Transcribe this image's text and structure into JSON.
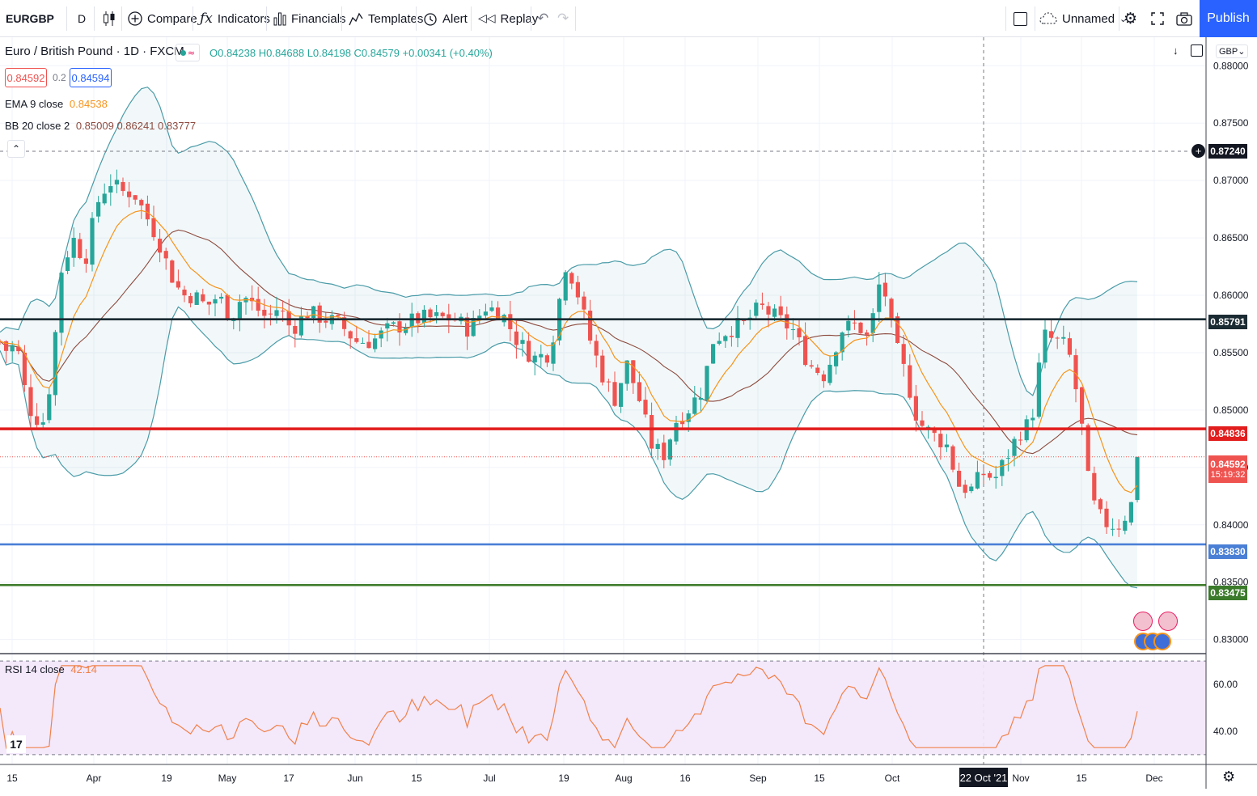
{
  "toolbar": {
    "symbol": "EURGBP",
    "interval": "D",
    "compare": "Compare",
    "indicators": "Indicators",
    "financials": "Financials",
    "templates": "Templates",
    "alert": "Alert",
    "replay": "Replay",
    "layout_name": "Unnamed",
    "publish": "Publish"
  },
  "legend": {
    "title": "Euro / British Pound · 1D · FXCM",
    "ohlc": "O0.84238  H0.84688  L0.84198  C0.84579  +0.00341  (+0.40%)",
    "bid": "0.84592",
    "spread": "0.2",
    "ask": "0.84594",
    "ema_label": "EMA 9 close",
    "ema_value": "0.84538",
    "bb_label": "BB 20 close 2",
    "bb_values": "0.85009  0.86241  0.83777",
    "rsi_label": "RSI 14 close",
    "rsi_value": "42.14",
    "currency": "GBP"
  },
  "price_axis": {
    "ticks": [
      "0.88000",
      "0.87500",
      "0.87000",
      "0.86500",
      "0.86000",
      "0.85500",
      "0.85000",
      "0.84500",
      "0.84000",
      "0.83500",
      "0.83000"
    ],
    "rsi_ticks": [
      "60.00",
      "40.00"
    ]
  },
  "price_labels": {
    "crosshair": "0.87240",
    "black_line": "0.85791",
    "red_line": "0.84836",
    "last_price": "0.84592",
    "countdown": "15:19:32",
    "blue_line": "0.83830",
    "green_line": "0.83475"
  },
  "time_axis": {
    "labels": [
      "15",
      "Apr",
      "19",
      "May",
      "17",
      "Jun",
      "15",
      "Jul",
      "19",
      "Aug",
      "16",
      "Sep",
      "15",
      "Oct",
      "Nov",
      "15",
      "Dec"
    ],
    "crosshair_date": "22 Oct '21"
  },
  "colors": {
    "up": "#26a69a",
    "down": "#ef5350",
    "ema": "#f7931a",
    "bb_basis": "#8d4a3f",
    "bb_band": "#4a9ba8",
    "black_line": "#1b2b33",
    "red_line": "#e21d1d",
    "blue_line": "#4a7fd6",
    "green_line": "#3b7a2a",
    "rsi_line": "#f0824a",
    "publish": "#2962ff"
  },
  "chart_data": {
    "type": "candlestick",
    "title": "Euro / British Pound · 1D · FXCM",
    "symbol": "EURGBP",
    "ylim": [
      0.8292,
      0.8803
    ],
    "horizontal_lines": [
      0.85791,
      0.84836,
      0.8383,
      0.83475
    ],
    "last_close": 0.84592,
    "rsi_ylim": [
      31,
      69
    ]
  }
}
